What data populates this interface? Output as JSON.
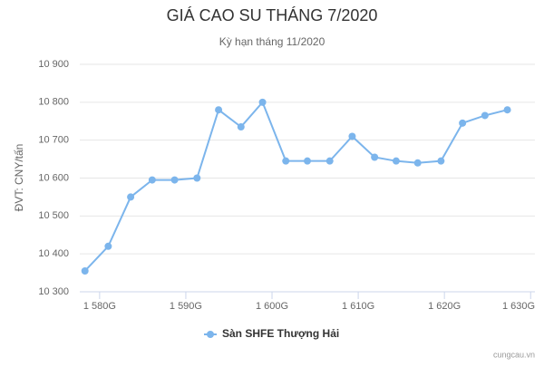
{
  "chart_data": {
    "type": "line",
    "title": "GIÁ CAO SU THÁNG 7/2020",
    "subtitle": "Kỳ hạn tháng 11/2020",
    "y_label": "ĐVT: CNY/tấn",
    "credits": "cungcau.vn",
    "x": [
      1578.3,
      1581,
      1583.6,
      1586.1,
      1588.7,
      1591.3,
      1593.8,
      1596.4,
      1598.9,
      1601.6,
      1604.1,
      1606.7,
      1609.3,
      1611.9,
      1614.4,
      1616.9,
      1619.6,
      1622.1,
      1624.7,
      1627.3
    ],
    "series": [
      {
        "name": "Sàn SHFE Thượng Hải",
        "color": "#7cb5ec",
        "values": [
          10355,
          10420,
          10550,
          10595,
          10595,
          10600,
          10780,
          10735,
          10800,
          10645,
          10645,
          10645,
          10710,
          10655,
          10645,
          10640,
          10645,
          10745,
          10765,
          10780
        ]
      }
    ],
    "xlim": [
      1577.7,
      1630.5
    ],
    "xticks": [
      {
        "value": 1580,
        "label": "1 580G"
      },
      {
        "value": 1590,
        "label": "1 590G"
      },
      {
        "value": 1600,
        "label": "1 600G"
      },
      {
        "value": 1610,
        "label": "1 610G"
      },
      {
        "value": 1620,
        "label": "1 620G"
      },
      {
        "value": 1630,
        "label": "1 630G"
      }
    ],
    "ylim": [
      10300,
      10900
    ],
    "yticks": [
      {
        "value": 10300,
        "label": "10 300"
      },
      {
        "value": 10400,
        "label": "10 400"
      },
      {
        "value": 10500,
        "label": "10 500"
      },
      {
        "value": 10600,
        "label": "10 600"
      },
      {
        "value": 10700,
        "label": "10 700"
      },
      {
        "value": 10800,
        "label": "10 800"
      },
      {
        "value": 10900,
        "label": "10 900"
      }
    ],
    "grid": true
  }
}
